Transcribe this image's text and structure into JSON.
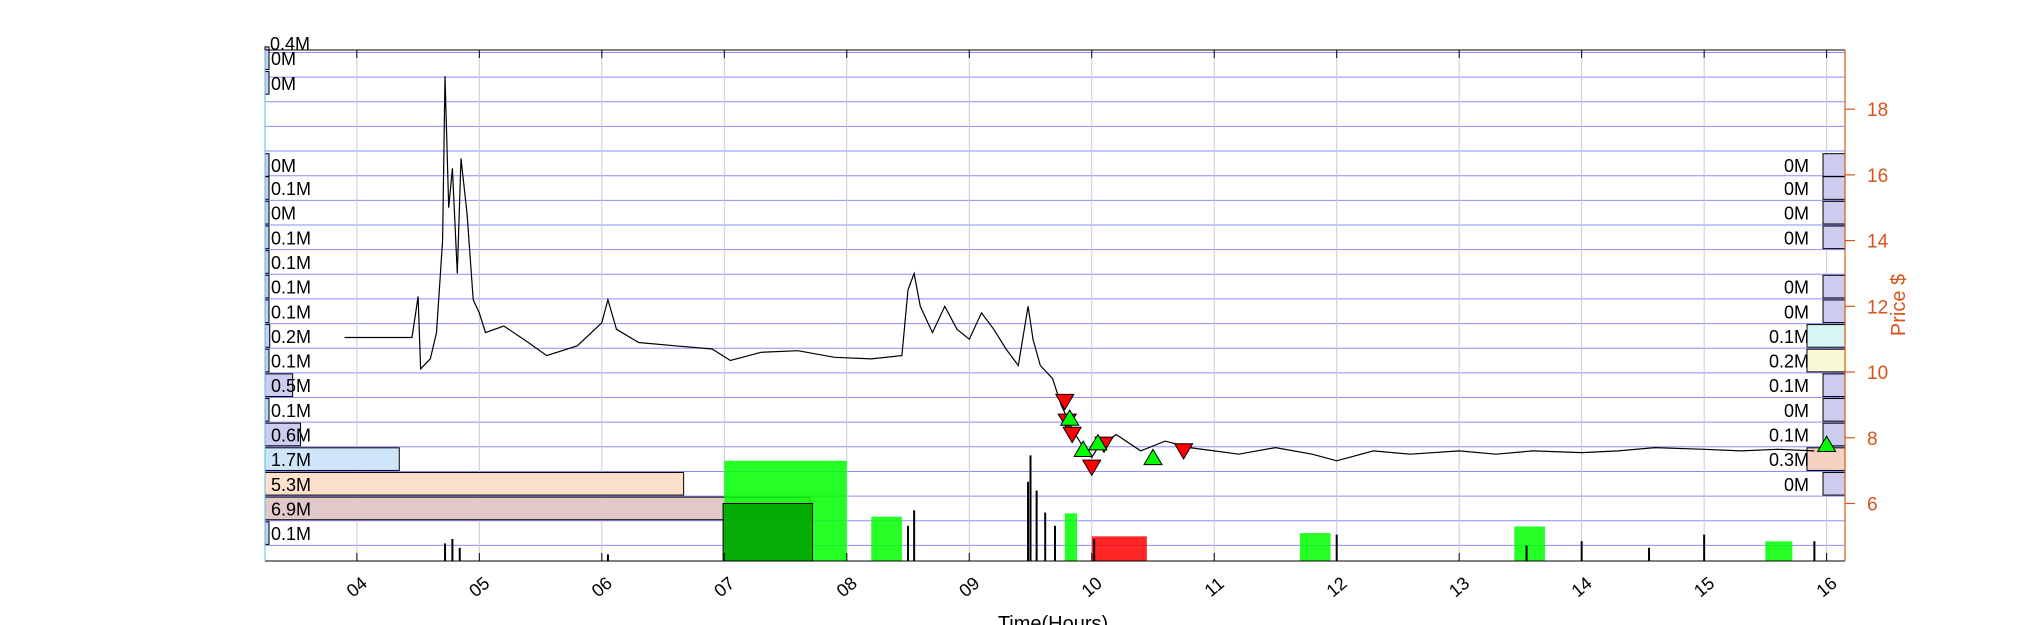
{
  "chart_data": {
    "type": "line",
    "xlabel": "Time(Hours)",
    "ylabel": "Price $",
    "colors": {
      "price_line": "#000000",
      "right_axis": "#D95319",
      "grid_band": "#0000FF",
      "buy_marker": "#00FF00",
      "sell_marker": "#FF0000",
      "volume_up": "#00FF00",
      "volume_down": "#FF0000",
      "profile_fill": "#CCCCEE"
    },
    "x_axis": {
      "range": [
        3.25,
        16.15
      ],
      "ticks": [
        4,
        5,
        6,
        7,
        8,
        9,
        10,
        11,
        12,
        13,
        14,
        15,
        16
      ],
      "tick_labels": [
        "04",
        "05",
        "06",
        "07",
        "08",
        "09",
        "10",
        "11",
        "12",
        "13",
        "14",
        "15",
        "16"
      ]
    },
    "y_axis_right": {
      "range": [
        4.25,
        19.8
      ],
      "ticks": [
        6,
        8,
        10,
        12,
        14,
        16,
        18
      ],
      "tick_labels": [
        "6",
        "8",
        "10",
        "12",
        "14",
        "16",
        "18"
      ]
    },
    "top_label": "0.4M",
    "price_series": [
      [
        3.9,
        11.05
      ],
      [
        4.12,
        11.05
      ],
      [
        4.45,
        11.05
      ],
      [
        4.5,
        12.3
      ],
      [
        4.52,
        10.1
      ],
      [
        4.6,
        10.4
      ],
      [
        4.65,
        11.2
      ],
      [
        4.7,
        14.0
      ],
      [
        4.72,
        19.0
      ],
      [
        4.75,
        15.0
      ],
      [
        4.78,
        16.2
      ],
      [
        4.82,
        13.0
      ],
      [
        4.85,
        16.5
      ],
      [
        4.9,
        14.8
      ],
      [
        4.95,
        12.2
      ],
      [
        5.0,
        11.8
      ],
      [
        5.05,
        11.2
      ],
      [
        5.2,
        11.4
      ],
      [
        5.4,
        10.9
      ],
      [
        5.55,
        10.5
      ],
      [
        5.8,
        10.8
      ],
      [
        6.0,
        11.5
      ],
      [
        6.05,
        12.2
      ],
      [
        6.12,
        11.3
      ],
      [
        6.3,
        10.9
      ],
      [
        6.6,
        10.8
      ],
      [
        6.9,
        10.7
      ],
      [
        7.05,
        10.35
      ],
      [
        7.3,
        10.6
      ],
      [
        7.6,
        10.65
      ],
      [
        7.9,
        10.45
      ],
      [
        8.2,
        10.4
      ],
      [
        8.45,
        10.5
      ],
      [
        8.5,
        12.5
      ],
      [
        8.55,
        13.0
      ],
      [
        8.6,
        12.0
      ],
      [
        8.7,
        11.2
      ],
      [
        8.8,
        12.0
      ],
      [
        8.9,
        11.3
      ],
      [
        9.0,
        11.0
      ],
      [
        9.1,
        11.8
      ],
      [
        9.2,
        11.3
      ],
      [
        9.3,
        10.7
      ],
      [
        9.4,
        10.2
      ],
      [
        9.48,
        12.0
      ],
      [
        9.52,
        11.0
      ],
      [
        9.58,
        10.2
      ],
      [
        9.68,
        9.8
      ],
      [
        9.75,
        9.0
      ],
      [
        9.8,
        8.6
      ],
      [
        9.85,
        8.2
      ],
      [
        9.9,
        7.9
      ],
      [
        9.95,
        7.6
      ],
      [
        10.0,
        7.4
      ],
      [
        10.05,
        7.7
      ],
      [
        10.2,
        8.1
      ],
      [
        10.4,
        7.6
      ],
      [
        10.6,
        7.9
      ],
      [
        10.8,
        7.7
      ],
      [
        11.0,
        7.6
      ],
      [
        11.2,
        7.5
      ],
      [
        11.5,
        7.7
      ],
      [
        11.8,
        7.5
      ],
      [
        12.0,
        7.3
      ],
      [
        12.3,
        7.6
      ],
      [
        12.6,
        7.5
      ],
      [
        13.0,
        7.6
      ],
      [
        13.3,
        7.5
      ],
      [
        13.6,
        7.6
      ],
      [
        14.0,
        7.55
      ],
      [
        14.3,
        7.6
      ],
      [
        14.6,
        7.7
      ],
      [
        15.0,
        7.65
      ],
      [
        15.3,
        7.6
      ],
      [
        15.6,
        7.65
      ],
      [
        15.9,
        7.6
      ]
    ],
    "sell_markers": [
      [
        9.78,
        9.1
      ],
      [
        9.8,
        8.5
      ],
      [
        9.84,
        8.1
      ],
      [
        10.0,
        7.1
      ],
      [
        10.1,
        7.8
      ],
      [
        10.75,
        7.6
      ]
    ],
    "buy_markers": [
      [
        9.82,
        8.6
      ],
      [
        9.93,
        7.65
      ],
      [
        10.05,
        7.85
      ],
      [
        10.5,
        7.4
      ],
      [
        16.0,
        7.8
      ]
    ],
    "left_profile": [
      {
        "price": 19.55,
        "label": "0M",
        "volume": 0.02
      },
      {
        "price": 18.8,
        "label": "0M",
        "volume": 0.0
      },
      {
        "price": 16.3,
        "label": "0M",
        "volume": 0.02
      },
      {
        "price": 15.6,
        "label": "0.1M",
        "volume": 0.03
      },
      {
        "price": 14.85,
        "label": "0M",
        "volume": 0.02
      },
      {
        "price": 14.1,
        "label": "0.1M",
        "volume": 0.04
      },
      {
        "price": 13.35,
        "label": "0.1M",
        "volume": 0.03
      },
      {
        "price": 12.6,
        "label": "0.1M",
        "volume": 0.04
      },
      {
        "price": 11.85,
        "label": "0.1M",
        "volume": 0.05
      },
      {
        "price": 11.1,
        "label": "0.2M",
        "volume": 0.06
      },
      {
        "price": 10.35,
        "label": "0.1M",
        "volume": 0.05
      },
      {
        "price": 9.6,
        "label": "0.5M",
        "volume": 0.35
      },
      {
        "price": 8.85,
        "label": "0.1M",
        "volume": 0.05
      },
      {
        "price": 8.1,
        "label": "0.6M",
        "volume": 0.45
      },
      {
        "price": 7.35,
        "label": "1.7M",
        "volume": 1.7,
        "color": "#CFE6FA"
      },
      {
        "price": 6.6,
        "label": "5.3M",
        "volume": 5.3,
        "color": "#FCE0CC"
      },
      {
        "price": 5.85,
        "label": "6.9M",
        "volume": 6.9,
        "color": "#E2C8C8"
      },
      {
        "price": 5.1,
        "label": "0.1M",
        "volume": 0.05
      }
    ],
    "right_profile": [
      {
        "price": 16.3,
        "label": "0M"
      },
      {
        "price": 15.6,
        "label": "0M"
      },
      {
        "price": 14.85,
        "label": "0M"
      },
      {
        "price": 14.1,
        "label": "0M"
      },
      {
        "price": 12.6,
        "label": "0M"
      },
      {
        "price": 11.85,
        "label": "0M"
      },
      {
        "price": 11.1,
        "label": "0.1M",
        "color": "#D8F5F5"
      },
      {
        "price": 10.35,
        "label": "0.2M",
        "color": "#F8F8D4"
      },
      {
        "price": 9.6,
        "label": "0.1M"
      },
      {
        "price": 8.85,
        "label": "0M"
      },
      {
        "price": 8.1,
        "label": "0.1M"
      },
      {
        "price": 7.35,
        "label": "0.3M",
        "color": "#F5D2C2"
      },
      {
        "price": 6.6,
        "label": "0M"
      }
    ],
    "volume_blocks": [
      {
        "x0": 7.0,
        "x1": 8.0,
        "price_top": 7.3,
        "color": "#00FF00"
      },
      {
        "x0": 6.99,
        "x1": 7.72,
        "price_top": 6.0,
        "color": "#009900",
        "outlined": true
      },
      {
        "x0": 8.2,
        "x1": 8.45,
        "price_top": 5.6,
        "color": "#00FF00"
      },
      {
        "x0": 9.78,
        "x1": 9.88,
        "price_top": 5.7,
        "color": "#00FF00"
      },
      {
        "x0": 10.0,
        "x1": 10.45,
        "price_top": 5.0,
        "color": "#FF0000"
      },
      {
        "x0": 13.45,
        "x1": 13.7,
        "price_top": 5.3,
        "color": "#00FF00"
      },
      {
        "x0": 11.7,
        "x1": 11.95,
        "price_top": 5.1,
        "color": "#00FF00"
      },
      {
        "x0": 15.5,
        "x1": 15.72,
        "price_top": 4.85,
        "color": "#00FF00"
      }
    ],
    "volume_spikes": [
      {
        "x": 4.72,
        "h": 0.8
      },
      {
        "x": 4.78,
        "h": 1.0
      },
      {
        "x": 4.84,
        "h": 0.6
      },
      {
        "x": 6.05,
        "h": 0.3
      },
      {
        "x": 8.5,
        "h": 1.6
      },
      {
        "x": 8.55,
        "h": 2.3
      },
      {
        "x": 9.48,
        "h": 3.6
      },
      {
        "x": 9.5,
        "h": 4.8
      },
      {
        "x": 9.55,
        "h": 3.2
      },
      {
        "x": 9.62,
        "h": 2.2
      },
      {
        "x": 9.7,
        "h": 1.6
      },
      {
        "x": 10.02,
        "h": 1.0
      },
      {
        "x": 12.0,
        "h": 1.2
      },
      {
        "x": 13.55,
        "h": 0.7
      },
      {
        "x": 14.0,
        "h": 0.9
      },
      {
        "x": 14.55,
        "h": 0.6
      },
      {
        "x": 15.0,
        "h": 1.2
      },
      {
        "x": 15.9,
        "h": 0.9
      }
    ]
  }
}
